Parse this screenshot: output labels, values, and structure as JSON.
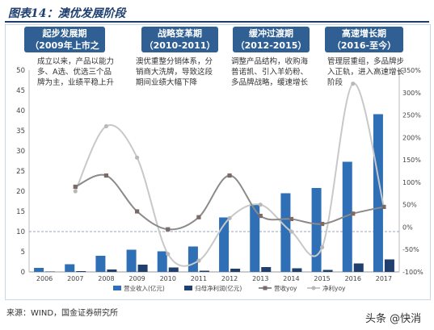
{
  "figure_title": "图表14：澳优发展阶段",
  "phases": [
    {
      "name": "起步发展期",
      "period": "（2009年上市之前）",
      "desc": [
        "成立以来，产品以能力",
        "多、A选、优选三个品",
        "牌为主，业绩平稳上升"
      ]
    },
    {
      "name": "战略变革期",
      "period": "（2010-2011）",
      "desc": [
        "澳优重整分销体系，分",
        "销商大洗牌，导致这段",
        "期间业绩大幅下降"
      ]
    },
    {
      "name": "缓冲过渡期",
      "period": "（2012-2015）",
      "desc": [
        "调整产品结构，收购海",
        "普诺凯、引入羊奶粉、",
        "多品牌战略，缓速增长"
      ]
    },
    {
      "name": "高速增长期",
      "period": "（2016-至今）",
      "desc": [
        "管理层重组，多品牌步",
        "入正轨，进入高速增长",
        "阶段"
      ]
    }
  ],
  "source": "来源：WIND，国金证券研究所",
  "watermark": "头条 @快消",
  "colors": {
    "revenue": "#2f6fb6",
    "profit": "#1f3f6e",
    "rev_yoy": "#8a8a8a",
    "np_yoy": "#c8c8c8",
    "phase_box": "#2f5f93"
  },
  "chart_data": {
    "type": "bar",
    "categories": [
      "2006",
      "2007",
      "2008",
      "2009",
      "2010",
      "2011",
      "2012",
      "2013",
      "2014",
      "2015",
      "2016",
      "2017"
    ],
    "series": [
      {
        "name": "营业收入(亿元)",
        "type": "bar",
        "axis": "left",
        "values": [
          1.0,
          1.9,
          4.0,
          5.5,
          5.1,
          6.3,
          13.5,
          16.8,
          19.5,
          20.8,
          27.3,
          39.1
        ]
      },
      {
        "name": "归母净利润(亿元)",
        "type": "bar",
        "axis": "left",
        "values": [
          0.1,
          0.2,
          0.6,
          1.8,
          1.1,
          0.3,
          0.8,
          1.2,
          0.9,
          0.5,
          2.1,
          3.1
        ]
      },
      {
        "name": "营收yoy",
        "type": "line",
        "axis": "right",
        "values": [
          null,
          90,
          115,
          35,
          -5,
          22,
          115,
          25,
          18,
          7,
          30,
          45
        ]
      },
      {
        "name": "净利yoy",
        "type": "line",
        "axis": "right",
        "values": [
          null,
          80,
          225,
          155,
          -60,
          -75,
          20,
          50,
          -10,
          -45,
          320,
          45
        ]
      }
    ],
    "ylim_left": [
      0,
      50
    ],
    "yticks_left": [
      "0",
      "5",
      "10",
      "15",
      "20",
      "25",
      "30",
      "35",
      "40",
      "45",
      "50"
    ],
    "ylim_right": [
      -100,
      350
    ],
    "yticks_right": [
      "-100%",
      "-50%",
      "0%",
      "50%",
      "100%",
      "150%",
      "200%",
      "250%",
      "300%",
      "350%"
    ],
    "reference_line": {
      "axis": "left",
      "value": 10
    },
    "legend_position": "bottom"
  }
}
